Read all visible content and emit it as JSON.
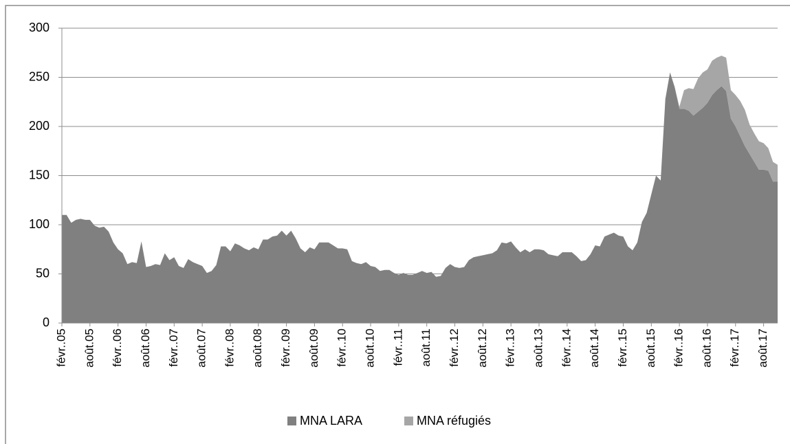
{
  "chart_data": {
    "type": "stacked_area",
    "categories": [
      "févr..05",
      null,
      null,
      null,
      null,
      null,
      "août.05",
      null,
      null,
      null,
      null,
      null,
      "févr..06",
      null,
      null,
      null,
      null,
      null,
      "août.06",
      null,
      null,
      null,
      null,
      null,
      "févr..07",
      null,
      null,
      null,
      null,
      null,
      "août.07",
      null,
      null,
      null,
      null,
      null,
      "févr..08",
      null,
      null,
      null,
      null,
      null,
      "août.08",
      null,
      null,
      null,
      null,
      null,
      "févr..09",
      null,
      null,
      null,
      null,
      null,
      "août.09",
      null,
      null,
      null,
      null,
      null,
      "févr..10",
      null,
      null,
      null,
      null,
      null,
      "août.10",
      null,
      null,
      null,
      null,
      null,
      "févr..11",
      null,
      null,
      null,
      null,
      null,
      "août.11",
      null,
      null,
      null,
      null,
      null,
      "févr..12",
      null,
      null,
      null,
      null,
      null,
      "août.12",
      null,
      null,
      null,
      null,
      null,
      "févr..13",
      null,
      null,
      null,
      null,
      null,
      "août.13",
      null,
      null,
      null,
      null,
      null,
      "févr..14",
      null,
      null,
      null,
      null,
      null,
      "août.14",
      null,
      null,
      null,
      null,
      null,
      "févr..15",
      null,
      null,
      null,
      null,
      null,
      "août.15",
      null,
      null,
      null,
      null,
      null,
      "févr..16",
      null,
      null,
      null,
      null,
      null,
      "août.16",
      null,
      null,
      null,
      null,
      null,
      "févr..17",
      null,
      null,
      null,
      null,
      null,
      "août.17",
      null,
      null,
      null
    ],
    "series": [
      {
        "name": "MNA LARA",
        "color": "#808080",
        "values": [
          110,
          110,
          102,
          105,
          106,
          105,
          105,
          99,
          97,
          98,
          93,
          82,
          75,
          71,
          60,
          62,
          61,
          83,
          57,
          58,
          60,
          59,
          71,
          64,
          67,
          58,
          56,
          65,
          62,
          60,
          58,
          51,
          53,
          59,
          78,
          78,
          73,
          81,
          79,
          76,
          74,
          77,
          75,
          85,
          85,
          88,
          89,
          94,
          89,
          94,
          86,
          76,
          72,
          77,
          75,
          82,
          82,
          82,
          79,
          76,
          76,
          75,
          63,
          61,
          60,
          62,
          58,
          57,
          53,
          54,
          54,
          51,
          49,
          51,
          49,
          49,
          51,
          53,
          51,
          52,
          47,
          48,
          56,
          60,
          57,
          56,
          57,
          64,
          67,
          68,
          69,
          70,
          71,
          74,
          82,
          81,
          83,
          77,
          72,
          75,
          72,
          75,
          75,
          74,
          70,
          69,
          68,
          72,
          72,
          72,
          68,
          63,
          64,
          70,
          79,
          78,
          88,
          90,
          92,
          89,
          88,
          78,
          74,
          82,
          103,
          112,
          131,
          150,
          145,
          228,
          255,
          240,
          218,
          218,
          216,
          211,
          215,
          219,
          224,
          232,
          237,
          241,
          236,
          208,
          200,
          190,
          180,
          172,
          164,
          156,
          156,
          155,
          144,
          144
        ]
      },
      {
        "name": "MNA réfugiés",
        "color": "#a6a6a6",
        "values": [
          0,
          0,
          0,
          0,
          0,
          0,
          0,
          0,
          0,
          0,
          0,
          0,
          0,
          0,
          0,
          0,
          0,
          0,
          0,
          0,
          0,
          0,
          0,
          0,
          0,
          0,
          0,
          0,
          0,
          0,
          0,
          0,
          0,
          0,
          0,
          0,
          0,
          0,
          0,
          0,
          0,
          0,
          0,
          0,
          0,
          0,
          0,
          0,
          0,
          0,
          0,
          0,
          0,
          0,
          0,
          0,
          0,
          0,
          0,
          0,
          0,
          0,
          0,
          0,
          0,
          0,
          0,
          0,
          0,
          0,
          0,
          0,
          0,
          0,
          0,
          0,
          0,
          0,
          0,
          0,
          0,
          0,
          0,
          0,
          0,
          0,
          0,
          0,
          0,
          0,
          0,
          0,
          0,
          0,
          0,
          0,
          0,
          0,
          0,
          0,
          0,
          0,
          0,
          0,
          0,
          0,
          0,
          0,
          0,
          0,
          0,
          0,
          0,
          0,
          0,
          0,
          0,
          0,
          0,
          0,
          0,
          0,
          0,
          0,
          0,
          0,
          0,
          0,
          0,
          0,
          0,
          0,
          2,
          19,
          23,
          27,
          34,
          36,
          34,
          35,
          33,
          31,
          34,
          29,
          32,
          36,
          37,
          30,
          29,
          29,
          27,
          23,
          20,
          17
        ]
      }
    ],
    "ylim": [
      0,
      300
    ],
    "yticks": [
      0,
      50,
      100,
      150,
      200,
      250,
      300
    ],
    "grid": true,
    "legend": "bottom"
  }
}
